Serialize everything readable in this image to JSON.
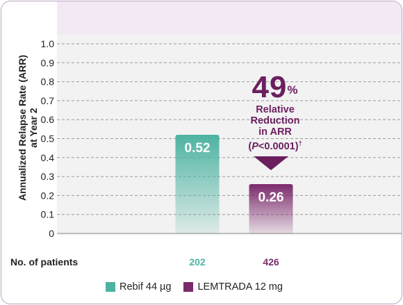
{
  "chart_data": {
    "type": "bar",
    "ylabel_line1": "Annualized Relapse Rate (ARR)",
    "ylabel_line2": "at Year 2",
    "ylim": [
      0,
      1.0
    ],
    "yticks": [
      "1.0",
      "0.9",
      "0.8",
      "0.7",
      "0.6",
      "0.5",
      "0.4",
      "0.3",
      "0.2",
      "0.1",
      "0"
    ],
    "grid": "horizontal-dashed",
    "bars": [
      {
        "name": "Rebif 44 µg",
        "value": 0.52,
        "label": "0.52",
        "color": "#4db3a1"
      },
      {
        "name": "LEMTRADA 12 mg",
        "value": 0.26,
        "label": "0.26",
        "color": "#7b2a6b"
      }
    ],
    "callout": {
      "big": "49",
      "big_sup": "%",
      "line1": "Relative",
      "line2": "Reduction",
      "line3": "in ARR",
      "p_open": "(",
      "p_italic": "P",
      "p_rest": "<0.0001)",
      "p_sup": "†"
    },
    "patients": {
      "label": "No. of patients",
      "counts": [
        "202",
        "426"
      ]
    },
    "legend": [
      "Rebif 44 µg",
      "LEMTRADA 12 mg"
    ]
  }
}
